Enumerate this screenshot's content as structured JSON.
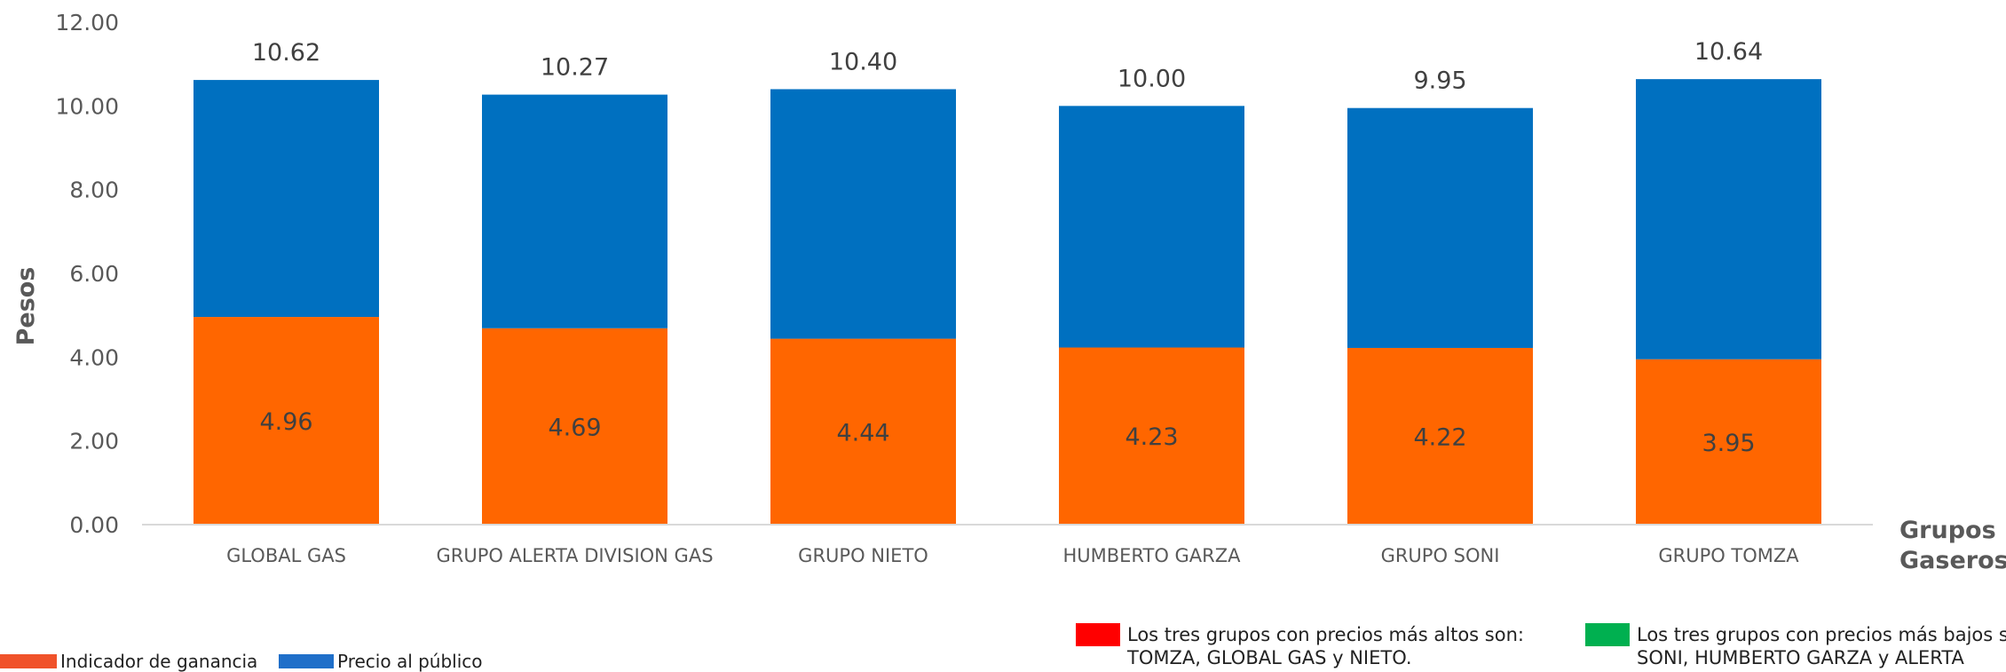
{
  "chart_data": {
    "type": "bar",
    "stacked": true,
    "categories": [
      "GLOBAL GAS",
      "GRUPO ALERTA DIVISION GAS",
      "GRUPO NIETO",
      "HUMBERTO GARZA",
      "GRUPO SONI",
      "GRUPO TOMZA"
    ],
    "series": [
      {
        "name": "Indicador de ganancia",
        "values": [
          4.96,
          4.69,
          4.44,
          4.23,
          4.22,
          3.95
        ],
        "color": "#FF6600",
        "labels": [
          "4.96",
          "4.69",
          "4.44",
          "4.23",
          "4.22",
          "3.95"
        ]
      },
      {
        "name": "Precio al público",
        "values": [
          5.66,
          5.58,
          5.96,
          5.77,
          5.73,
          6.69
        ],
        "color": "#0070C0"
      }
    ],
    "totals": [
      10.62,
      10.27,
      10.4,
      10.0,
      9.95,
      10.64
    ],
    "total_labels": [
      "10.62",
      "10.27",
      "10.40",
      "10.00",
      "9.95",
      "10.64"
    ],
    "ylabel": "Pesos",
    "xlabel_lines": [
      "Grupos",
      "Gaseros"
    ],
    "ylim": [
      0,
      12
    ],
    "yticks": [
      "0.00",
      "2.00",
      "4.00",
      "6.00",
      "8.00",
      "10.00",
      "12.00"
    ],
    "grid": false,
    "legend_position": "bottom-left"
  },
  "legend": [
    {
      "label": "Indicador de ganancia",
      "color": "#F0522A"
    },
    {
      "label": "Precio al público",
      "color": "#1F6FC9"
    }
  ],
  "notes": [
    {
      "color": "#FF0000",
      "lines": [
        "Los tres grupos con precios más altos son:",
        "TOMZA, GLOBAL GAS y NIETO."
      ]
    },
    {
      "color": "#00B050",
      "lines": [
        "Los tres grupos con precios más bajos s",
        "SONI, HUMBERTO GARZA y ALERTA"
      ]
    }
  ]
}
